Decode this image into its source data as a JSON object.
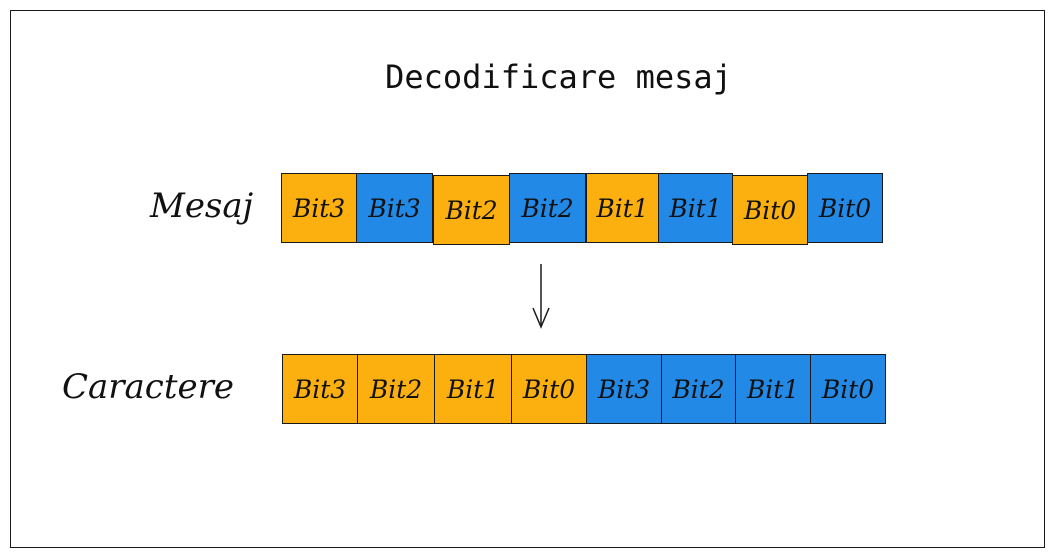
{
  "title": "Decodificare mesaj",
  "colors": {
    "orange": "#fbb010",
    "blue": "#2289e6",
    "stroke": "#1a1a1a"
  },
  "rows": [
    {
      "label": "Mesaj",
      "cells": [
        {
          "text": "Bit3",
          "color": "orange"
        },
        {
          "text": "Bit3",
          "color": "blue"
        },
        {
          "text": "Bit2",
          "color": "orange"
        },
        {
          "text": "Bit2",
          "color": "blue"
        },
        {
          "text": "Bit1",
          "color": "orange"
        },
        {
          "text": "Bit1",
          "color": "blue"
        },
        {
          "text": "Bit0",
          "color": "orange"
        },
        {
          "text": "Bit0",
          "color": "blue"
        }
      ]
    },
    {
      "label": "Caractere",
      "cells": [
        {
          "text": "Bit3",
          "color": "orange"
        },
        {
          "text": "Bit2",
          "color": "orange"
        },
        {
          "text": "Bit1",
          "color": "orange"
        },
        {
          "text": "Bit0",
          "color": "orange"
        },
        {
          "text": "Bit3",
          "color": "blue"
        },
        {
          "text": "Bit2",
          "color": "blue"
        },
        {
          "text": "Bit1",
          "color": "blue"
        },
        {
          "text": "Bit0",
          "color": "blue"
        }
      ]
    }
  ],
  "arrow_icon": "arrow-down-icon"
}
